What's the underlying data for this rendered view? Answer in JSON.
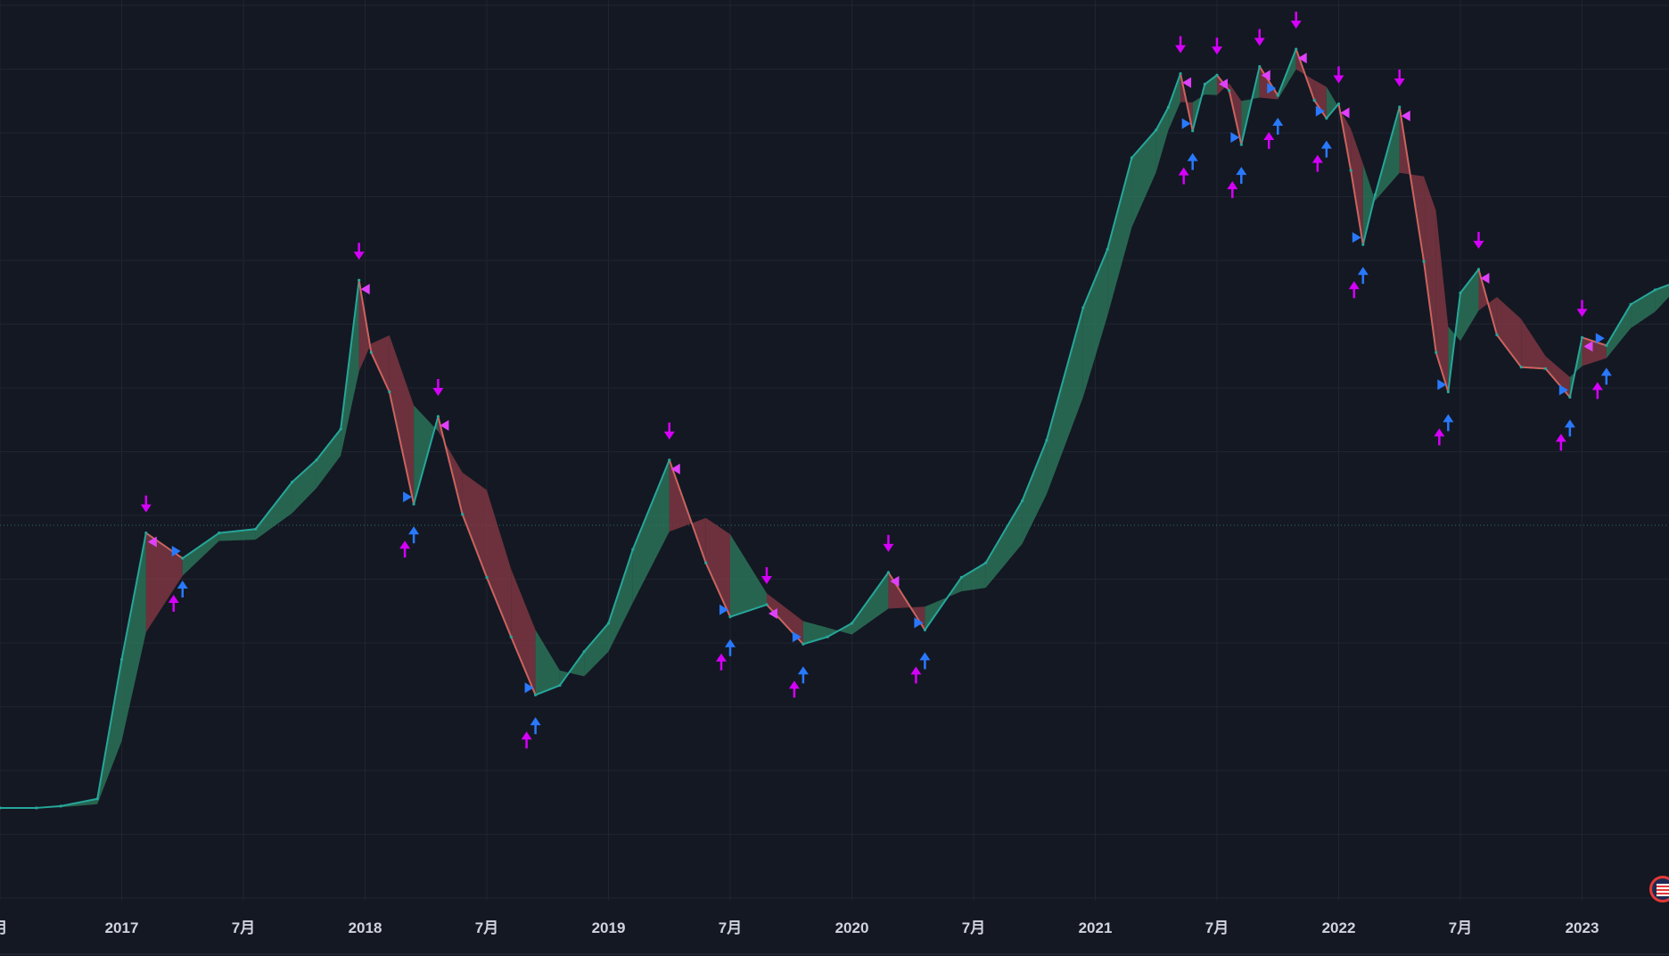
{
  "chart_data": {
    "type": "line",
    "title": "",
    "xlabel": "",
    "ylabel": "",
    "x_ticks": [
      "月",
      "2017",
      "7月",
      "2018",
      "7月",
      "2019",
      "7月",
      "2020",
      "7月",
      "2021",
      "7月",
      "2022",
      "7月",
      "2023"
    ],
    "x_tick_pos": [
      0,
      1,
      2,
      3,
      4,
      5,
      6,
      7,
      8,
      9,
      10,
      11,
      12,
      13
    ],
    "grid": true,
    "x": [
      -0.5,
      0.0,
      0.3,
      0.5,
      0.8,
      1.0,
      1.2,
      1.5,
      1.8,
      2.1,
      2.4,
      2.6,
      2.8,
      2.95,
      3.05,
      3.2,
      3.4,
      3.6,
      3.8,
      4.0,
      4.2,
      4.4,
      4.6,
      4.8,
      5.0,
      5.2,
      5.5,
      5.8,
      6.0,
      6.3,
      6.6,
      6.8,
      7.0,
      7.3,
      7.6,
      7.9,
      8.1,
      8.4,
      8.6,
      8.9,
      9.1,
      9.3,
      9.5,
      9.6,
      9.7,
      9.8,
      9.9,
      10.0,
      10.1,
      10.2,
      10.35,
      10.5,
      10.65,
      10.8,
      10.9,
      11.0,
      11.1,
      11.2,
      11.3,
      11.5,
      11.7,
      11.8,
      11.9,
      12.0,
      12.15,
      12.3,
      12.5,
      12.7,
      12.9,
      13.0,
      13.2,
      13.4,
      13.6,
      13.75
    ],
    "series": [
      {
        "values": [
          0.95,
          0.95,
          0.95,
          0.96,
          1.0,
          2.2,
          4.5,
          3.9,
          4.5,
          4.6,
          6.0,
          6.8,
          8.1,
          18.8,
          12.5,
          10.0,
          5.3,
          8.7,
          5.0,
          3.5,
          2.5,
          1.8,
          1.9,
          2.3,
          2.7,
          4.1,
          6.8,
          3.8,
          2.8,
          3.0,
          2.4,
          2.5,
          2.7,
          3.6,
          2.6,
          3.5,
          3.8,
          5.4,
          7.6,
          16.1,
          22.4,
          37.6,
          44.0,
          50.0,
          60.5,
          43.8,
          57.0,
          60.0,
          55.0,
          40.5,
          63.0,
          53.5,
          69.5,
          52.0,
          47.0,
          51.0,
          35.0,
          23.0,
          30.5,
          50.1,
          20.9,
          12.5,
          10.0,
          17.5,
          20.0,
          13.8,
          11.5,
          11.4,
          9.7,
          13.6,
          13.0,
          16.4,
          17.8,
          18.5
        ]
      }
    ]
  }
}
